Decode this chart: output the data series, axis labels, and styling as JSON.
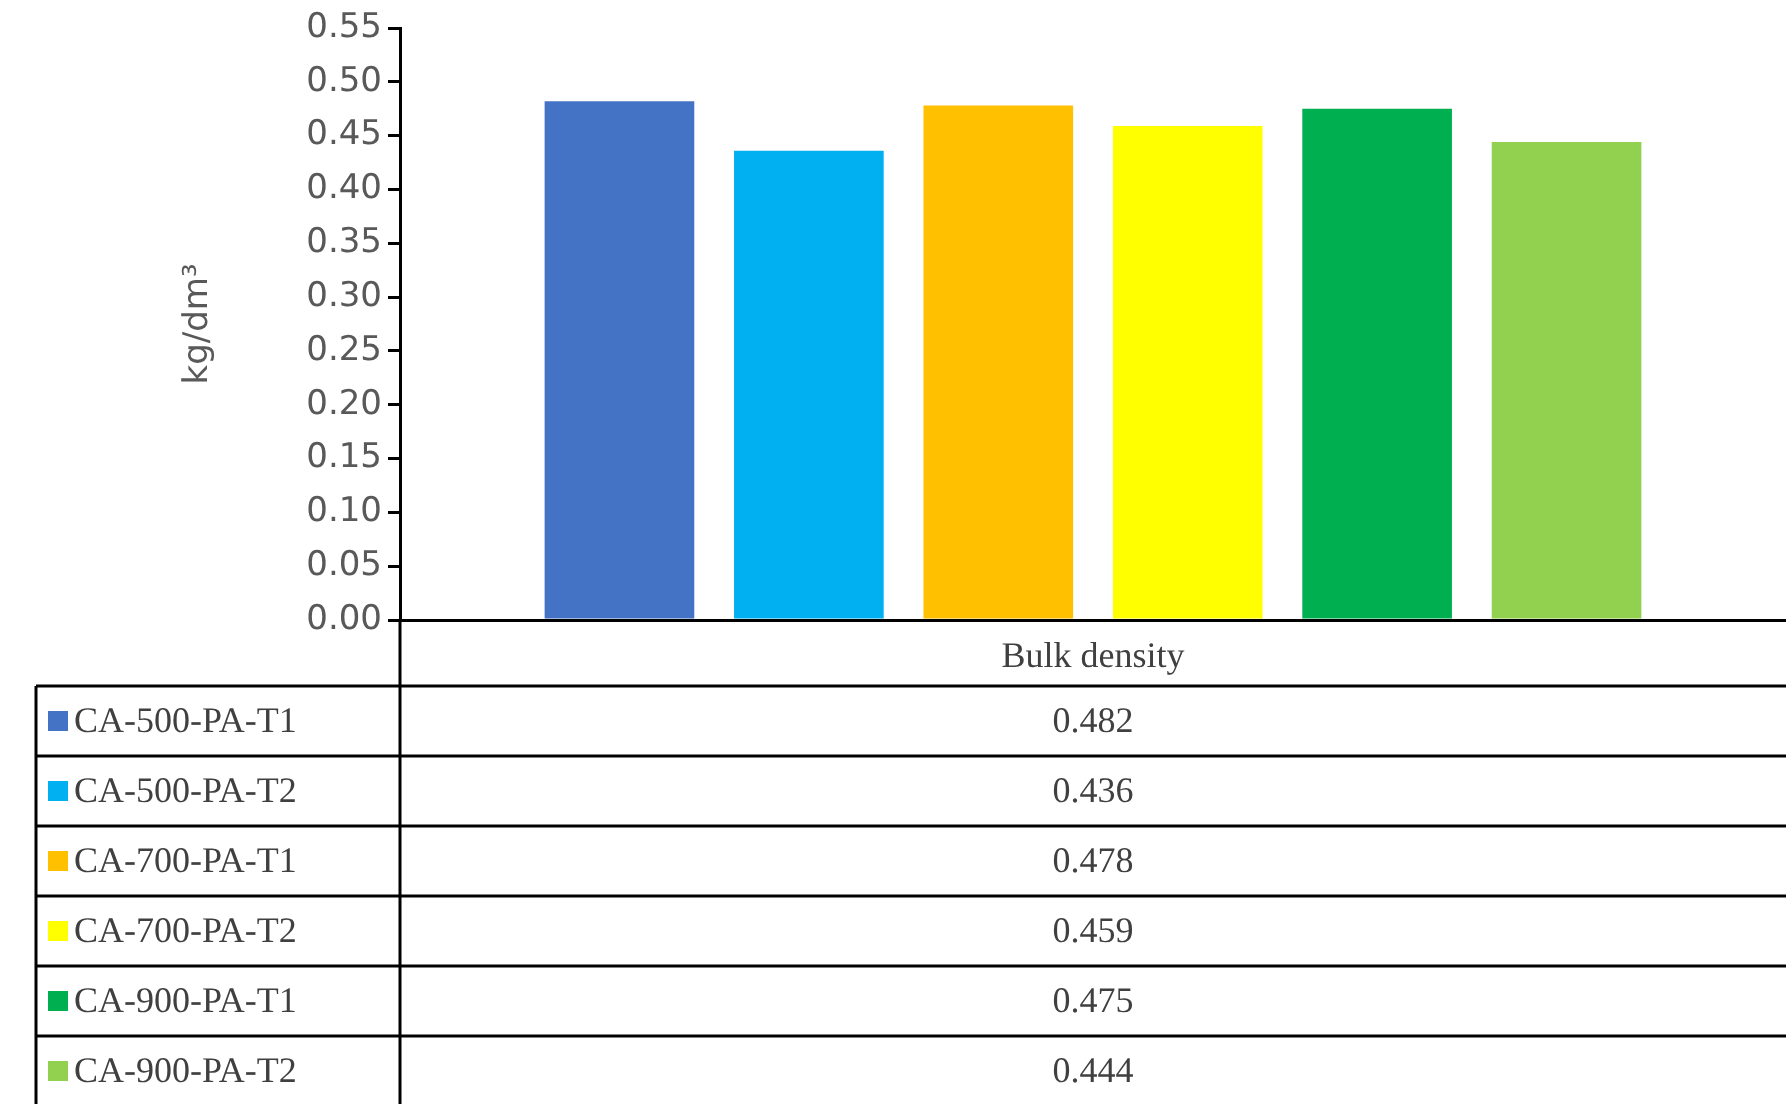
{
  "chart_data": {
    "type": "bar",
    "ylabel": "kg/dm³",
    "categories": [
      "Bulk density"
    ],
    "series": [
      {
        "name": "CA-500-PA-T1",
        "color": "#4472c4",
        "values": [
          0.482
        ]
      },
      {
        "name": "CA-500-PA-T2",
        "color": "#00b0f0",
        "values": [
          0.436
        ]
      },
      {
        "name": "CA-700-PA-T1",
        "color": "#ffc000",
        "values": [
          0.478
        ]
      },
      {
        "name": "CA-700-PA-T2",
        "color": "#ffff00",
        "values": [
          0.459
        ]
      },
      {
        "name": "CA-900-PA-T1",
        "color": "#00b050",
        "values": [
          0.475
        ]
      },
      {
        "name": "CA-900-PA-T2",
        "color": "#92d050",
        "values": [
          0.444
        ]
      }
    ],
    "ylim": [
      0,
      0.55
    ],
    "yticks": [
      {
        "value": 0,
        "label": "0.00"
      },
      {
        "value": 0.05,
        "label": "0.05"
      },
      {
        "value": 0.1,
        "label": "0.10"
      },
      {
        "value": 0.15,
        "label": "0.15"
      },
      {
        "value": 0.2,
        "label": "0.20"
      },
      {
        "value": 0.25,
        "label": "0.25"
      },
      {
        "value": 0.3,
        "label": "0.30"
      },
      {
        "value": 0.35,
        "label": "0.35"
      },
      {
        "value": 0.4,
        "label": "0.40"
      },
      {
        "value": 0.45,
        "label": "0.45"
      },
      {
        "value": 0.5,
        "label": "0.50"
      },
      {
        "value": 0.55,
        "label": "0.55"
      }
    ],
    "grid": false,
    "legend": "bottom",
    "annotations": [
      "0.482",
      "0.436",
      "0.478",
      "0.459",
      "0.475",
      "0.444"
    ]
  }
}
